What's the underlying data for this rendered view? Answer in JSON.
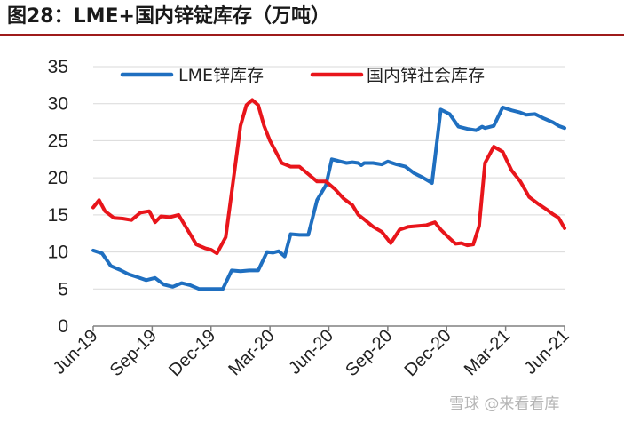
{
  "header": {
    "title": "图28：LME+国内锌锭库存（万吨）"
  },
  "watermark": "雪球 @来看看库",
  "chart_data": {
    "type": "line",
    "title": "图28：LME+国内锌锭库存（万吨）",
    "xlabel": "",
    "ylabel": "",
    "ylim": [
      0,
      35
    ],
    "yticks": [
      "0",
      "5",
      "10",
      "15",
      "20",
      "25",
      "30",
      "35"
    ],
    "xticks": [
      "Jun-19",
      "Sep-19",
      "Dec-19",
      "Mar-20",
      "Jun-20",
      "Sep-20",
      "Dec-20",
      "Mar-21",
      "Jun-21"
    ],
    "grid": true,
    "legend_position": "top",
    "series": [
      {
        "name": "LME锌库存",
        "color": "#1f6fc0",
        "x": [
          0,
          0.15,
          0.3,
          0.45,
          0.6,
          0.75,
          0.9,
          1.05,
          1.2,
          1.35,
          1.5,
          1.65,
          1.8,
          1.95,
          2.05,
          2.2,
          2.35,
          2.5,
          2.65,
          2.8,
          2.95,
          3.05,
          3.15,
          3.25,
          3.35,
          3.5,
          3.65,
          3.8,
          3.95,
          4.05,
          4.15,
          4.3,
          4.4,
          4.5,
          4.55,
          4.6,
          4.75,
          4.9,
          5.0,
          5.15,
          5.3,
          5.45,
          5.6,
          5.75,
          5.9,
          6.05,
          6.2,
          6.35,
          6.5,
          6.6,
          6.65,
          6.8,
          6.95,
          7.1,
          7.25,
          7.35,
          7.5,
          7.65,
          7.8,
          7.9,
          8.0
        ],
        "y": [
          10.2,
          9.8,
          8.1,
          7.6,
          7.0,
          6.6,
          6.2,
          6.5,
          5.6,
          5.3,
          5.8,
          5.5,
          5.0,
          5.0,
          5.0,
          5.0,
          7.5,
          7.4,
          7.5,
          7.5,
          10.0,
          9.9,
          10.1,
          9.4,
          12.4,
          12.3,
          12.3,
          17.0,
          19.0,
          22.5,
          22.3,
          22.0,
          22.1,
          22.0,
          21.7,
          22.0,
          22.0,
          21.8,
          22.2,
          21.8,
          21.5,
          20.6,
          20.0,
          19.3,
          29.2,
          28.6,
          26.9,
          26.6,
          26.4,
          26.9,
          26.7,
          27.0,
          29.5,
          29.1,
          28.8,
          28.5,
          28.6,
          28.0,
          27.5,
          27.0,
          26.7
        ]
      },
      {
        "name": "国内锌社会库存",
        "color": "#e8151b",
        "x": [
          0,
          0.1,
          0.2,
          0.35,
          0.5,
          0.65,
          0.8,
          0.95,
          1.05,
          1.15,
          1.3,
          1.45,
          1.6,
          1.75,
          1.9,
          2.0,
          2.1,
          2.25,
          2.4,
          2.5,
          2.6,
          2.7,
          2.8,
          2.9,
          3.0,
          3.1,
          3.2,
          3.35,
          3.5,
          3.65,
          3.8,
          3.95,
          4.1,
          4.25,
          4.4,
          4.5,
          4.6,
          4.75,
          4.9,
          5.05,
          5.2,
          5.35,
          5.5,
          5.65,
          5.8,
          5.9,
          6.0,
          6.15,
          6.25,
          6.35,
          6.45,
          6.55,
          6.65,
          6.8,
          6.95,
          7.1,
          7.25,
          7.4,
          7.55,
          7.7,
          7.8,
          7.9,
          8.0
        ],
        "y": [
          16.0,
          17.0,
          15.5,
          14.6,
          14.5,
          14.3,
          15.3,
          15.5,
          14.0,
          14.8,
          14.7,
          15.0,
          13.0,
          11.0,
          10.5,
          10.3,
          9.8,
          12.0,
          21.0,
          27.0,
          29.8,
          30.5,
          29.8,
          27.0,
          25.0,
          23.5,
          22.0,
          21.5,
          21.5,
          20.5,
          19.5,
          19.5,
          18.5,
          17.2,
          16.3,
          15.0,
          14.4,
          13.4,
          12.7,
          11.2,
          13.0,
          13.4,
          13.5,
          13.6,
          14.0,
          13.0,
          12.2,
          11.1,
          11.2,
          10.9,
          11.0,
          13.5,
          22.0,
          24.2,
          23.5,
          21.0,
          19.5,
          17.4,
          16.5,
          15.7,
          15.1,
          14.6,
          13.2
        ]
      }
    ]
  }
}
